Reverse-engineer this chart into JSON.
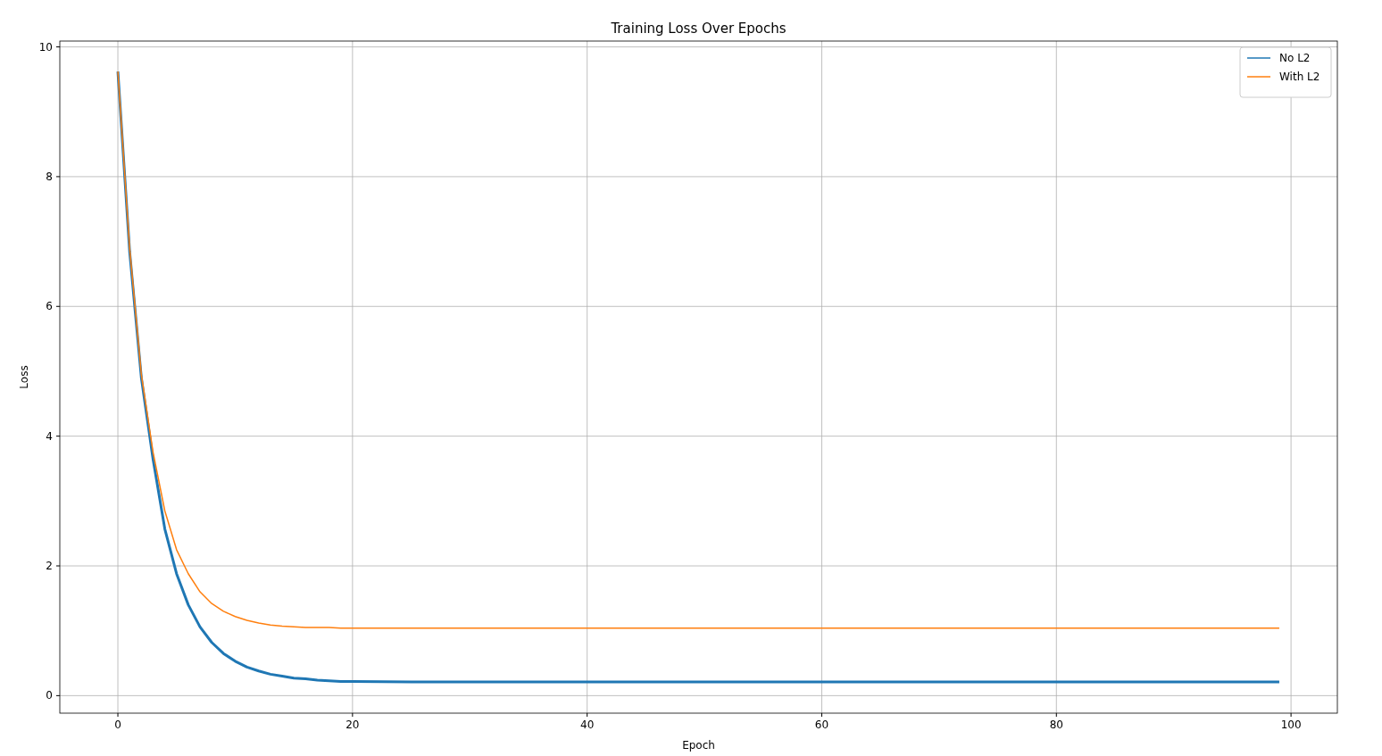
{
  "chart_data": {
    "type": "line",
    "title": "Training Loss Over Epochs",
    "xlabel": "Epoch",
    "ylabel": "Loss",
    "x": [
      0,
      1,
      2,
      3,
      4,
      5,
      6,
      7,
      8,
      9,
      10,
      11,
      12,
      13,
      14,
      15,
      16,
      17,
      18,
      19,
      20,
      25,
      30,
      40,
      50,
      60,
      70,
      80,
      90,
      99
    ],
    "series": [
      {
        "name": "No L2",
        "color": "#1f77b4",
        "values": [
          9.62,
          6.85,
          4.9,
          3.64,
          2.57,
          1.88,
          1.4,
          1.06,
          0.82,
          0.65,
          0.53,
          0.44,
          0.38,
          0.33,
          0.3,
          0.27,
          0.26,
          0.24,
          0.23,
          0.22,
          0.22,
          0.21,
          0.21,
          0.21,
          0.21,
          0.21,
          0.21,
          0.21,
          0.21,
          0.21
        ]
      },
      {
        "name": "With L2",
        "color": "#ff7f0e",
        "values": [
          9.62,
          6.9,
          4.95,
          3.75,
          2.85,
          2.25,
          1.88,
          1.6,
          1.42,
          1.3,
          1.22,
          1.16,
          1.12,
          1.09,
          1.07,
          1.06,
          1.05,
          1.05,
          1.05,
          1.04,
          1.04,
          1.04,
          1.04,
          1.04,
          1.04,
          1.04,
          1.04,
          1.04,
          1.04,
          1.04
        ]
      }
    ],
    "xlim": [
      -4.95,
      103.95
    ],
    "xticks": [
      0,
      20,
      40,
      60,
      80,
      100
    ],
    "ylim": [
      -0.27,
      10.09
    ],
    "yticks": [
      0,
      2,
      4,
      6,
      8,
      10
    ],
    "grid": true,
    "legend": "top right",
    "line_style": "solid",
    "marker": "none"
  }
}
